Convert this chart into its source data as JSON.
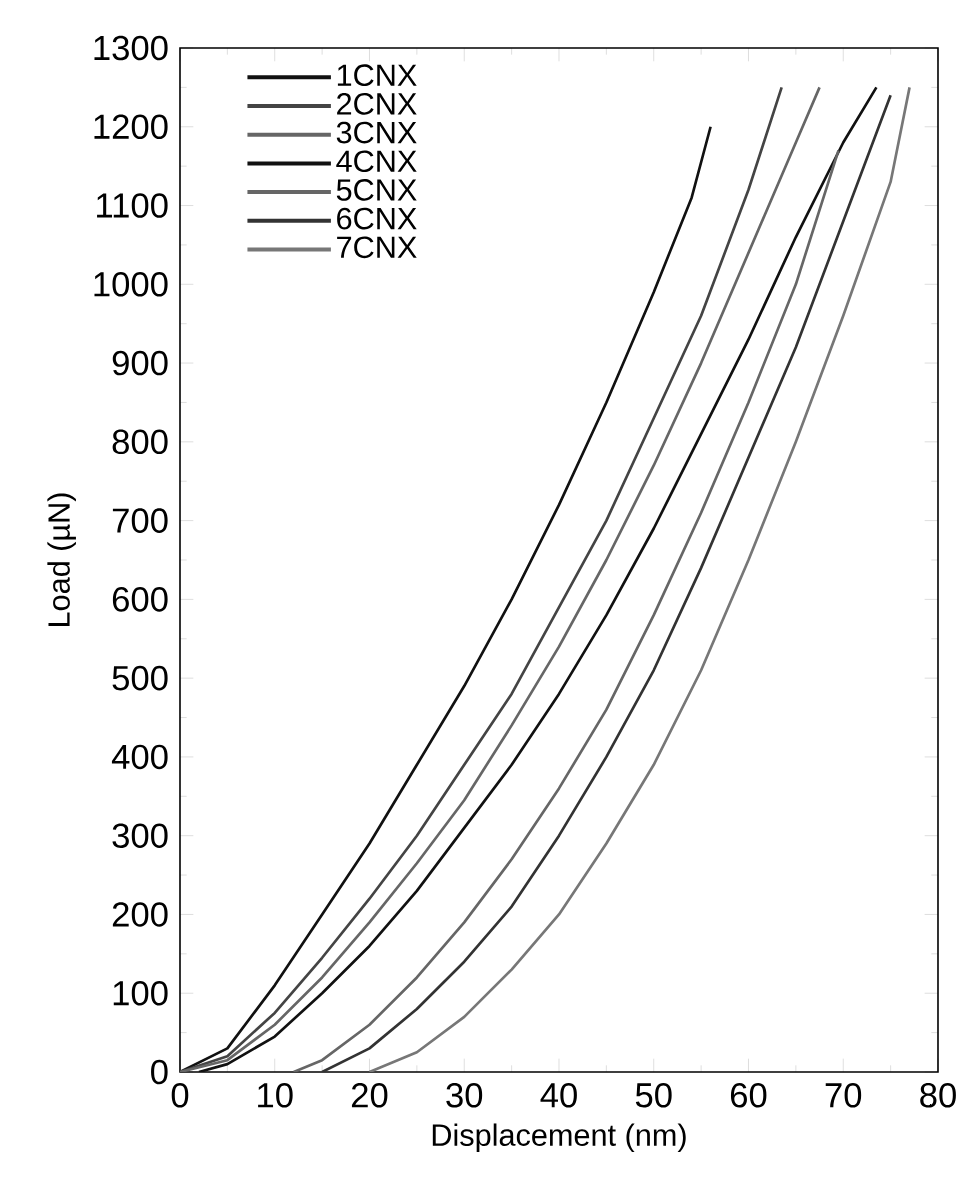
{
  "chart_data": {
    "type": "line",
    "xlabel": "Displacement (nm)",
    "ylabel": "Load (µN)",
    "xlim": [
      0,
      80
    ],
    "ylim": [
      0,
      1300
    ],
    "xticks": [
      0,
      10,
      20,
      30,
      40,
      50,
      60,
      70,
      80
    ],
    "yticks": [
      0,
      100,
      200,
      300,
      400,
      500,
      600,
      700,
      800,
      900,
      1000,
      1100,
      1200,
      1300
    ],
    "legend": "top left",
    "grid": false,
    "marker": "none",
    "line_style": "solid",
    "series": [
      {
        "name": "1CNX",
        "color": "#111111",
        "x": [
          0,
          5,
          10,
          15,
          20,
          25,
          30,
          35,
          40,
          45,
          50,
          54,
          56
        ],
        "values": [
          0,
          30,
          110,
          200,
          290,
          390,
          490,
          600,
          720,
          850,
          990,
          1110,
          1200
        ]
      },
      {
        "name": "2CNX",
        "color": "#444444",
        "x": [
          0,
          5,
          10,
          15,
          20,
          25,
          30,
          35,
          40,
          45,
          50,
          55,
          60,
          63.5
        ],
        "values": [
          0,
          20,
          75,
          145,
          220,
          300,
          390,
          480,
          590,
          700,
          830,
          960,
          1120,
          1250
        ]
      },
      {
        "name": "3CNX",
        "color": "#666666",
        "x": [
          0,
          5,
          10,
          15,
          20,
          25,
          30,
          35,
          40,
          45,
          50,
          55,
          60,
          65,
          67.5
        ],
        "values": [
          0,
          15,
          60,
          120,
          190,
          265,
          345,
          440,
          540,
          650,
          770,
          900,
          1040,
          1180,
          1250
        ]
      },
      {
        "name": "4CNX",
        "color": "#111111",
        "x": [
          2,
          5,
          10,
          15,
          20,
          25,
          30,
          35,
          40,
          45,
          50,
          55,
          60,
          65,
          70,
          73.5
        ],
        "values": [
          0,
          10,
          45,
          100,
          160,
          230,
          310,
          390,
          480,
          580,
          690,
          810,
          930,
          1060,
          1180,
          1250
        ]
      },
      {
        "name": "5CNX",
        "color": "#666666",
        "x": [
          12,
          15,
          20,
          25,
          30,
          35,
          40,
          45,
          50,
          55,
          60,
          65,
          69.5
        ],
        "values": [
          0,
          15,
          60,
          120,
          190,
          270,
          360,
          460,
          580,
          710,
          850,
          1000,
          1170
        ]
      },
      {
        "name": "6CNX",
        "color": "#333333",
        "x": [
          15,
          20,
          25,
          30,
          35,
          40,
          45,
          50,
          55,
          60,
          65,
          70,
          75
        ],
        "values": [
          0,
          30,
          80,
          140,
          210,
          300,
          400,
          510,
          640,
          780,
          920,
          1080,
          1240
        ]
      },
      {
        "name": "7CNX",
        "color": "#777777",
        "x": [
          20,
          25,
          30,
          35,
          40,
          45,
          50,
          55,
          60,
          65,
          70,
          75,
          77
        ],
        "values": [
          0,
          25,
          70,
          130,
          200,
          290,
          390,
          510,
          650,
          800,
          960,
          1130,
          1250
        ]
      }
    ]
  }
}
